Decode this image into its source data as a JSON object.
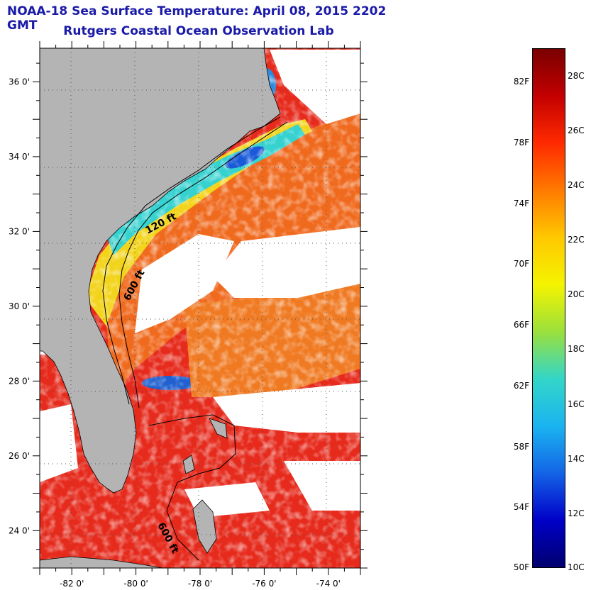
{
  "title": "NOAA-18 Sea Surface Temperature:  April 08, 2015 2202 GMT",
  "subtitle": "Rutgers Coastal Ocean Observation Lab",
  "map": {
    "lat_labels": [
      "24 0'",
      "26 0'",
      "28 0'",
      "30 0'",
      "32 0'",
      "34 0'",
      "36 0'"
    ],
    "lat_values": [
      24,
      26,
      28,
      30,
      32,
      34,
      36
    ],
    "lon_labels": [
      "-82 0'",
      "-80 0'",
      "-78 0'",
      "-76 0'",
      "-74 0'"
    ],
    "lon_values": [
      -82,
      -80,
      -78,
      -76,
      -74
    ],
    "lat_range": [
      23.0,
      36.9
    ],
    "lon_range": [
      -83.0,
      -73.0
    ],
    "isobath_labels": [
      "120 ft",
      "600 ft",
      "600 ft"
    ],
    "colors": {
      "land": "#b4b4b4",
      "cloud": "#ffffff",
      "warm": "#e8231a",
      "orange": "#f26a1b",
      "yellow": "#f0e61c",
      "cyan": "#33d6d6",
      "blue": "#1565d8"
    }
  },
  "colorbar": {
    "fahrenheit_labels": [
      "82F",
      "78F",
      "74F",
      "70F",
      "66F",
      "62F",
      "58F",
      "54F",
      "50F"
    ],
    "celsius_labels": [
      "28C",
      "26C",
      "24C",
      "22C",
      "20C",
      "18C",
      "16C",
      "14C",
      "12C",
      "10C"
    ],
    "range_c": [
      10,
      29
    ],
    "gradient": [
      "#7a0000",
      "#c30000",
      "#ff2a00",
      "#ff7a00",
      "#ffc800",
      "#f4f400",
      "#9be03c",
      "#33d6c8",
      "#1ab4f0",
      "#1464e6",
      "#0000c8",
      "#00006e"
    ]
  }
}
